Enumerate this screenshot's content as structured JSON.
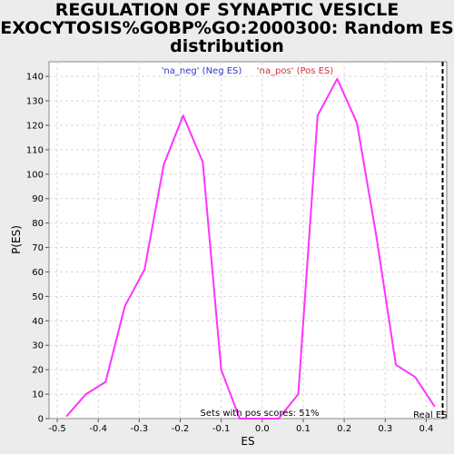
{
  "chart_data": {
    "type": "line",
    "title_lines": [
      "REGULATION OF SYNAPTIC VESICLE",
      "EXOCYTOSIS%GOBP%GO:2000300: Random ES",
      "distribution"
    ],
    "xlabel": "ES",
    "ylabel": "P(ES)",
    "xlim": [
      -0.52,
      0.45
    ],
    "ylim": [
      0,
      146
    ],
    "xticks": [
      -0.5,
      -0.4,
      -0.3,
      -0.2,
      -0.1,
      0.0,
      0.1,
      0.2,
      0.3,
      0.4
    ],
    "xtick_labels": [
      "-0.5",
      "-0.4",
      "-0.3",
      "-0.2",
      "-0.1",
      "0.0",
      "0.1",
      "0.2",
      "0.3",
      "0.4"
    ],
    "yticks": [
      0,
      10,
      20,
      30,
      40,
      50,
      60,
      70,
      80,
      90,
      100,
      110,
      120,
      130,
      140
    ],
    "grid": true,
    "series": [
      {
        "name": "Random ES distribution",
        "color": "#ff33ff",
        "x": [
          -0.477,
          -0.43,
          -0.382,
          -0.335,
          -0.287,
          -0.24,
          -0.193,
          -0.145,
          -0.1,
          -0.055,
          -0.01,
          0.04,
          0.088,
          0.135,
          0.183,
          0.231,
          0.278,
          0.326,
          0.373,
          0.42
        ],
        "y": [
          1,
          10,
          15,
          46,
          61,
          104,
          124,
          105,
          20,
          0,
          0,
          0,
          10,
          124,
          139,
          121,
          75,
          22,
          17,
          5
        ]
      }
    ],
    "legend": [
      {
        "label": "'na_neg' (Neg ES)",
        "color": "#3333cc"
      },
      {
        "label": "'na_pos' (Pos ES)",
        "color": "#cc3333"
      }
    ],
    "legend_position": "top-center",
    "real_es": {
      "x": 0.44,
      "label": "Real ES",
      "color": "#000000"
    },
    "annotation": "Sets with pos scores: 51%"
  }
}
